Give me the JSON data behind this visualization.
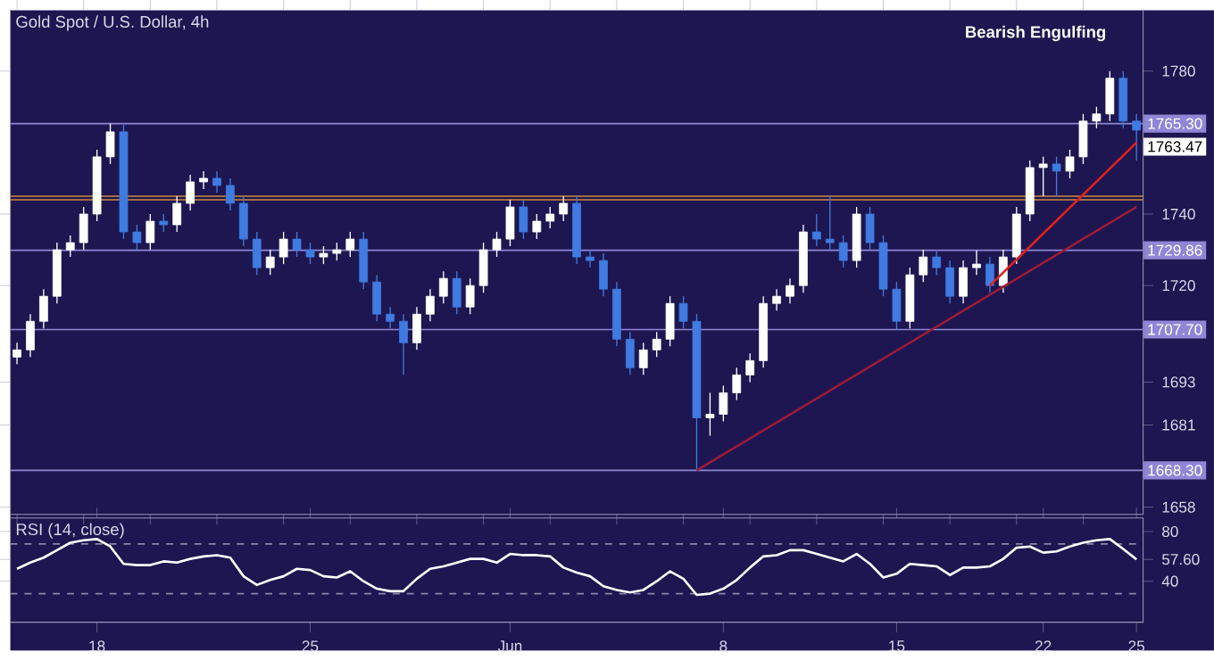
{
  "chart_data": [
    {
      "type": "candlestick",
      "title": "Gold Spot / U.S. Dollar, 4h",
      "colors": [
        "#ffffff",
        "#3f7be0"
      ],
      "categories": [
        null,
        null,
        null,
        null,
        null,
        null,
        null,
        null,
        null,
        null,
        null,
        null,
        null,
        null,
        null,
        null,
        null,
        null,
        null,
        null,
        null,
        null,
        null,
        null,
        null,
        null,
        null,
        null,
        null,
        null,
        null,
        null,
        null,
        null,
        null,
        null,
        null,
        null,
        null,
        null,
        null,
        null,
        null,
        null,
        null,
        null,
        null,
        null,
        null,
        null,
        null,
        null,
        null,
        null,
        null,
        null,
        null,
        null,
        null,
        null,
        null,
        null,
        null,
        null,
        null,
        null,
        null,
        null,
        null,
        null,
        null,
        null,
        null,
        null,
        null,
        null,
        null,
        null,
        null,
        null,
        null,
        null,
        null,
        null,
        null
      ],
      "ylim": [
        1656,
        1797
      ],
      "yticks": [
        1658,
        1681,
        1693,
        1720,
        1740,
        1780
      ],
      "series": [
        {
          "type": "candlestick",
          "ohlc": [
            [
              1700,
              1704,
              1698,
              1702
            ],
            [
              1702,
              1712,
              1700,
              1710
            ],
            [
              1710,
              1719,
              1708,
              1717
            ],
            [
              1717,
              1732,
              1715,
              1730
            ],
            [
              1730,
              1734,
              1728,
              1732
            ],
            [
              1732,
              1742,
              1730,
              1740
            ],
            [
              1740,
              1758,
              1738,
              1756
            ],
            [
              1756,
              1765.3,
              1754,
              1763
            ],
            [
              1763,
              1765,
              1733,
              1735
            ],
            [
              1735,
              1737,
              1730,
              1732
            ],
            [
              1732,
              1740,
              1730,
              1738
            ],
            [
              1738,
              1740,
              1735,
              1737
            ],
            [
              1737,
              1745,
              1735,
              1743
            ],
            [
              1743,
              1751,
              1741,
              1749
            ],
            [
              1749,
              1752,
              1747,
              1750
            ],
            [
              1750,
              1752,
              1746,
              1748
            ],
            [
              1748,
              1750,
              1741,
              1743
            ],
            [
              1743,
              1745,
              1731,
              1733
            ],
            [
              1733,
              1735,
              1723,
              1725
            ],
            [
              1725,
              1730,
              1723,
              1728
            ],
            [
              1728,
              1735,
              1726,
              1733
            ],
            [
              1733,
              1735,
              1728,
              1730
            ],
            [
              1730,
              1732,
              1726,
              1728
            ],
            [
              1728,
              1731,
              1726,
              1729
            ],
            [
              1729,
              1732,
              1727,
              1730
            ],
            [
              1730,
              1735,
              1728,
              1733
            ],
            [
              1733,
              1735,
              1719,
              1721
            ],
            [
              1721,
              1723,
              1710,
              1712
            ],
            [
              1712,
              1714,
              1708,
              1710
            ],
            [
              1710,
              1712,
              1695,
              1704
            ],
            [
              1704,
              1714,
              1702,
              1712
            ],
            [
              1712,
              1719,
              1710,
              1717
            ],
            [
              1717,
              1724,
              1715,
              1722
            ],
            [
              1722,
              1724,
              1712,
              1714
            ],
            [
              1714,
              1722,
              1712,
              1720
            ],
            [
              1720,
              1732,
              1718,
              1730
            ],
            [
              1730,
              1735,
              1728,
              1733
            ],
            [
              1733,
              1744,
              1731,
              1742
            ],
            [
              1742,
              1744,
              1733,
              1735
            ],
            [
              1735,
              1740,
              1733,
              1738
            ],
            [
              1738,
              1742,
              1736,
              1740
            ],
            [
              1740,
              1745,
              1738,
              1743
            ],
            [
              1743,
              1745,
              1726,
              1728
            ],
            [
              1728,
              1730,
              1725,
              1727
            ],
            [
              1727,
              1729,
              1717,
              1719
            ],
            [
              1719,
              1721,
              1703,
              1705
            ],
            [
              1705,
              1707,
              1695,
              1697
            ],
            [
              1697,
              1704,
              1695,
              1702
            ],
            [
              1702,
              1707,
              1700,
              1705
            ],
            [
              1705,
              1717,
              1703,
              1715
            ],
            [
              1715,
              1717,
              1708,
              1710
            ],
            [
              1710,
              1712,
              1668.3,
              1683
            ],
            [
              1683,
              1690,
              1678,
              1684
            ],
            [
              1684,
              1692,
              1682,
              1690
            ],
            [
              1690,
              1697,
              1688,
              1695
            ],
            [
              1695,
              1701,
              1693,
              1699
            ],
            [
              1699,
              1717,
              1697,
              1715
            ],
            [
              1715,
              1719,
              1713,
              1717
            ],
            [
              1717,
              1722,
              1715,
              1720
            ],
            [
              1720,
              1737,
              1718,
              1735
            ],
            [
              1735,
              1740,
              1731,
              1733
            ],
            [
              1733,
              1745,
              1730,
              1732
            ],
            [
              1732,
              1734,
              1725,
              1727
            ],
            [
              1727,
              1742,
              1725,
              1740
            ],
            [
              1740,
              1742,
              1730,
              1732
            ],
            [
              1732,
              1734,
              1717,
              1719
            ],
            [
              1719,
              1721,
              1707.7,
              1710
            ],
            [
              1710,
              1725,
              1708,
              1723
            ],
            [
              1723,
              1730,
              1721,
              1728
            ],
            [
              1728,
              1730,
              1723,
              1725
            ],
            [
              1725,
              1727,
              1715,
              1717
            ],
            [
              1717,
              1727,
              1715,
              1725
            ],
            [
              1725,
              1729.86,
              1723,
              1726
            ],
            [
              1726,
              1728,
              1718,
              1720
            ],
            [
              1720,
              1730,
              1718,
              1728
            ],
            [
              1728,
              1742,
              1726,
              1740
            ],
            [
              1740,
              1755,
              1738,
              1753
            ],
            [
              1753,
              1756,
              1745,
              1754
            ],
            [
              1754,
              1756,
              1745,
              1752
            ],
            [
              1752,
              1758,
              1750,
              1756
            ],
            [
              1756,
              1768,
              1754,
              1766
            ],
            [
              1766,
              1770,
              1764,
              1768
            ],
            [
              1768,
              1780,
              1766,
              1778
            ],
            [
              1778,
              1780,
              1764,
              1766
            ],
            [
              1766,
              1768,
              1755,
              1763.47
            ]
          ]
        },
        {
          "type": "line",
          "color": "#9b1b3a",
          "values": [
            null,
            null,
            null,
            null,
            null,
            null,
            null,
            null,
            null,
            null,
            null,
            null,
            null,
            null,
            null,
            null,
            null,
            null,
            null,
            null,
            null,
            null,
            null,
            null,
            null,
            null,
            null,
            null,
            null,
            null,
            null,
            null,
            null,
            null,
            null,
            null,
            null,
            null,
            null,
            null,
            null,
            null,
            null,
            null,
            null,
            null,
            null,
            null,
            null,
            null,
            null,
            1668.3,
            null,
            null,
            null,
            null,
            null,
            null,
            null,
            null,
            null,
            null,
            null,
            null,
            null,
            null,
            null,
            null,
            null,
            null,
            null,
            null,
            null,
            null,
            null,
            null,
            null,
            null,
            null,
            null,
            null,
            null,
            null,
            null,
            1742
          ]
        },
        {
          "type": "line",
          "color": "#e02020",
          "values": [
            null,
            null,
            null,
            null,
            null,
            null,
            null,
            null,
            null,
            null,
            null,
            null,
            null,
            null,
            null,
            null,
            null,
            null,
            null,
            null,
            null,
            null,
            null,
            null,
            null,
            null,
            null,
            null,
            null,
            null,
            null,
            null,
            null,
            null,
            null,
            null,
            null,
            null,
            null,
            null,
            null,
            null,
            null,
            null,
            null,
            null,
            null,
            null,
            null,
            null,
            null,
            null,
            null,
            null,
            null,
            null,
            null,
            null,
            null,
            null,
            null,
            null,
            null,
            null,
            null,
            null,
            null,
            null,
            null,
            null,
            null,
            null,
            null,
            1720,
            null,
            null,
            null,
            null,
            null,
            null,
            null,
            null,
            null,
            null,
            1760
          ]
        }
      ],
      "ref_lines": [
        {
          "axis": "y",
          "value": 1765.3,
          "label": "1765.30",
          "color": "#8f86d6"
        },
        {
          "axis": "y",
          "value": 1745,
          "color": "#d08a3a"
        },
        {
          "axis": "y",
          "value": 1744,
          "color": "#d08a3a"
        },
        {
          "axis": "y",
          "value": 1729.86,
          "label": "1729.86",
          "color": "#8f86d6"
        },
        {
          "axis": "y",
          "value": 1707.7,
          "label": "1707.70",
          "color": "#8f86d6"
        },
        {
          "axis": "y",
          "value": 1668.3,
          "label": "1668.30",
          "color": "#8f86d6"
        }
      ],
      "annotations": [
        "Bearish Engulfing",
        "1763.47"
      ]
    },
    {
      "type": "line",
      "title": "RSI (14, close)",
      "categories": [
        null,
        null,
        null,
        null,
        null,
        null,
        "18",
        null,
        null,
        null,
        null,
        null,
        null,
        null,
        null,
        null,
        null,
        null,
        null,
        null,
        null,
        null,
        "25",
        null,
        null,
        null,
        null,
        null,
        null,
        null,
        null,
        null,
        null,
        null,
        null,
        null,
        null,
        "Jun",
        null,
        null,
        null,
        null,
        null,
        null,
        null,
        null,
        null,
        null,
        null,
        null,
        null,
        null,
        null,
        "8",
        null,
        null,
        null,
        null,
        null,
        null,
        null,
        null,
        null,
        null,
        null,
        null,
        "15",
        null,
        null,
        null,
        null,
        null,
        null,
        null,
        null,
        null,
        null,
        "22",
        null,
        null,
        null,
        null,
        null,
        null,
        "25"
      ],
      "ylim": [
        7,
        91
      ],
      "yticks": [
        40,
        {
          "value": 57.6,
          "label": "57.60"
        },
        80
      ],
      "series": [
        {
          "color": "#ffffff",
          "values": [
            50,
            55,
            59,
            65,
            71,
            73,
            74,
            68,
            54,
            53,
            53,
            56,
            55,
            58,
            60,
            61,
            59,
            44,
            37,
            41,
            44,
            50,
            49,
            44,
            43,
            48,
            40,
            34,
            32,
            32,
            42,
            50,
            52,
            55,
            58,
            58,
            55,
            62,
            61,
            61,
            60,
            51,
            47,
            44,
            36,
            33,
            31,
            33,
            40,
            48,
            42,
            29,
            30,
            34,
            41,
            51,
            60,
            61,
            65,
            65,
            62,
            59,
            56,
            62,
            54,
            43,
            46,
            54,
            53,
            52,
            45,
            51,
            51,
            52,
            58,
            67,
            68,
            63,
            64,
            68,
            71,
            73,
            74,
            66,
            57.6
          ]
        }
      ],
      "ref_lines": [
        {
          "axis": "y",
          "value": 70,
          "color": "#8a86a8",
          "line_style": "dashed"
        },
        {
          "axis": "y",
          "value": 30,
          "color": "#8a86a8",
          "line_style": "dashed"
        }
      ]
    }
  ]
}
